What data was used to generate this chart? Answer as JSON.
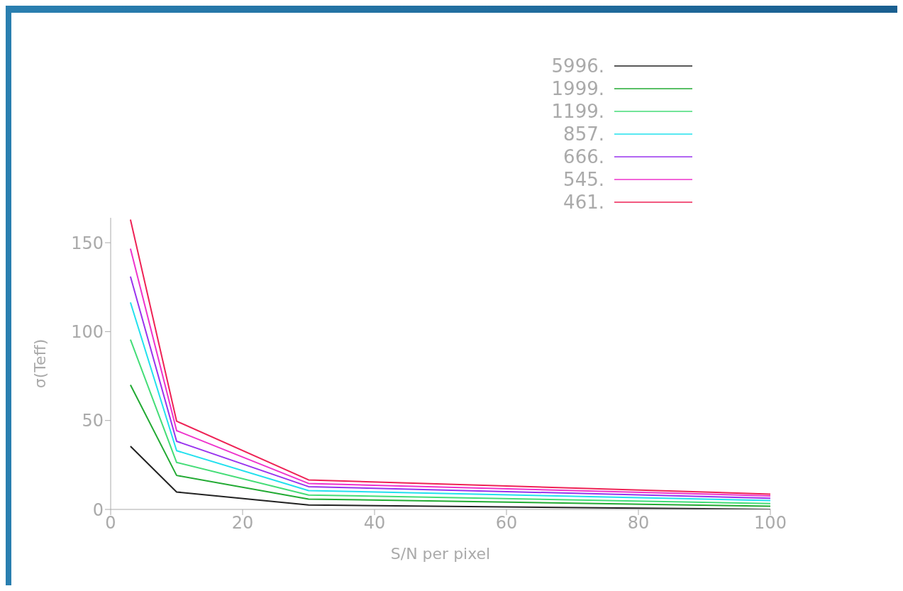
{
  "chart_data": {
    "type": "line",
    "xlabel": "S/N per pixel",
    "ylabel": "σ(Teff)",
    "x": [
      3,
      10,
      30,
      100
    ],
    "xlim": [
      0,
      100
    ],
    "xticks": [
      0,
      20,
      40,
      60,
      80,
      100
    ],
    "ylim": [
      0,
      164
    ],
    "yticks": [
      0,
      50,
      100,
      150
    ],
    "grid": false,
    "legend": "top right",
    "marker": "none",
    "line_style": "solid",
    "series": [
      {
        "name": "5996.",
        "color": "#222222",
        "values": [
          35.5,
          9.8,
          2.5,
          0
        ]
      },
      {
        "name": "1999.",
        "color": "#22aa33",
        "values": [
          70,
          19.1,
          5.8,
          1.8
        ]
      },
      {
        "name": "1199.",
        "color": "#44dd77",
        "values": [
          95.5,
          26.4,
          8.1,
          3.3
        ]
      },
      {
        "name": "857.",
        "color": "#22e0ee",
        "values": [
          116.4,
          33,
          10.6,
          5
        ]
      },
      {
        "name": "666.",
        "color": "#9933ee",
        "values": [
          131,
          38.3,
          12.8,
          6.3
        ]
      },
      {
        "name": "545.",
        "color": "#ee33cc",
        "values": [
          146.6,
          44.3,
          14.6,
          7.6
        ]
      },
      {
        "name": "461.",
        "color": "#ee2255",
        "values": [
          163,
          49.6,
          16.6,
          8.6
        ]
      }
    ]
  }
}
